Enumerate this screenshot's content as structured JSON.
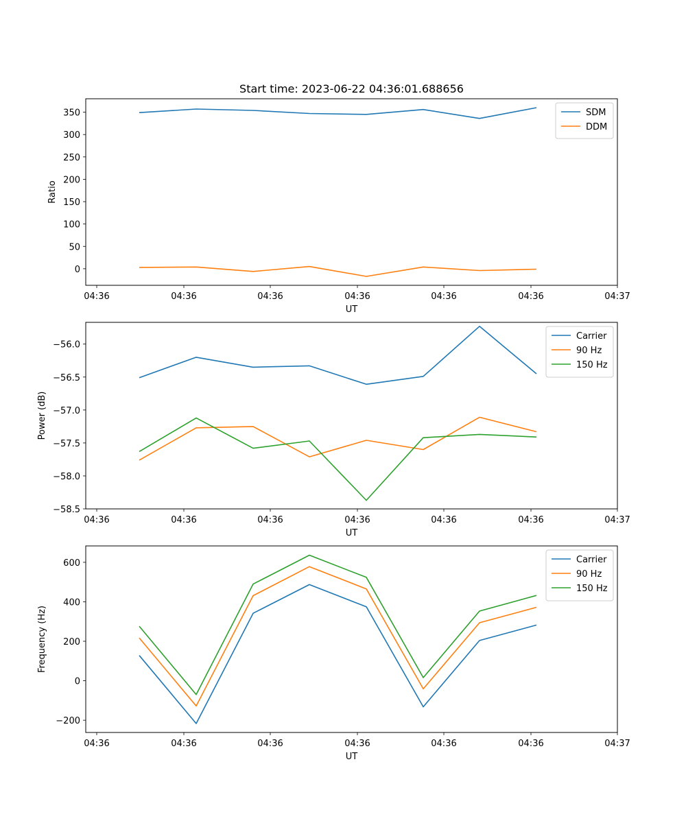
{
  "figure": {
    "title": "Start time: 2023-06-22 04:36:01.688656"
  },
  "chart_data": [
    {
      "type": "line",
      "title": "Start time: 2023-06-22 04:36:01.688656",
      "xlabel": "UT",
      "ylabel": "Ratio",
      "x_tick_labels": [
        "04:36",
        "04:36",
        "04:36",
        "04:36",
        "04:36",
        "04:36",
        "04:37"
      ],
      "ylim": [
        -37,
        380
      ],
      "y_ticks": [
        0,
        50,
        100,
        150,
        200,
        250,
        300,
        350
      ],
      "y_tick_labels": [
        "0",
        "50",
        "100",
        "150",
        "200",
        "250",
        "300",
        "350"
      ],
      "legend_position": "top-right",
      "series": [
        {
          "name": "SDM",
          "color": "#1f77b4",
          "values": [
            349,
            357,
            354,
            347,
            345,
            356,
            336,
            360
          ]
        },
        {
          "name": "DDM",
          "color": "#ff7f0e",
          "values": [
            3,
            4,
            -6,
            5,
            -17,
            4,
            -4,
            -1
          ]
        }
      ]
    },
    {
      "type": "line",
      "xlabel": "UT",
      "ylabel": "Power (dB)",
      "x_tick_labels": [
        "04:36",
        "04:36",
        "04:36",
        "04:36",
        "04:36",
        "04:36",
        "04:37"
      ],
      "ylim": [
        -58.5,
        -55.67
      ],
      "y_ticks": [
        -58.5,
        -58.0,
        -57.5,
        -57.0,
        -56.5,
        -56.0
      ],
      "y_tick_labels": [
        "−58.5",
        "−58.0",
        "−57.5",
        "−57.0",
        "−56.5",
        "−56.0"
      ],
      "legend_position": "top-right",
      "series": [
        {
          "name": "Carrier",
          "color": "#1f77b4",
          "values": [
            -56.51,
            -56.2,
            -56.35,
            -56.33,
            -56.61,
            -56.49,
            -55.73,
            -56.45
          ]
        },
        {
          "name": "90 Hz",
          "color": "#ff7f0e",
          "values": [
            -57.76,
            -57.27,
            -57.25,
            -57.71,
            -57.46,
            -57.6,
            -57.11,
            -57.33
          ]
        },
        {
          "name": "150 Hz",
          "color": "#2ca02c",
          "values": [
            -57.63,
            -57.12,
            -57.58,
            -57.47,
            -58.37,
            -57.42,
            -57.37,
            -57.41
          ]
        }
      ]
    },
    {
      "type": "line",
      "xlabel": "UT",
      "ylabel": "Frequency (Hz)",
      "x_tick_labels": [
        "04:36",
        "04:36",
        "04:36",
        "04:36",
        "04:36",
        "04:36",
        "04:37"
      ],
      "ylim": [
        -262,
        683
      ],
      "y_ticks": [
        -200,
        0,
        200,
        400,
        600
      ],
      "y_tick_labels": [
        "−200",
        "0",
        "200",
        "400",
        "600"
      ],
      "legend_position": "top-right",
      "series": [
        {
          "name": "Carrier",
          "color": "#1f77b4",
          "values": [
            128,
            -217,
            342,
            487,
            375,
            -132,
            204,
            282
          ]
        },
        {
          "name": "90 Hz",
          "color": "#ff7f0e",
          "values": [
            217,
            -128,
            431,
            578,
            465,
            -41,
            294,
            372
          ]
        },
        {
          "name": "150 Hz",
          "color": "#2ca02c",
          "values": [
            276,
            -70,
            490,
            636,
            524,
            16,
            353,
            432
          ]
        }
      ]
    }
  ]
}
